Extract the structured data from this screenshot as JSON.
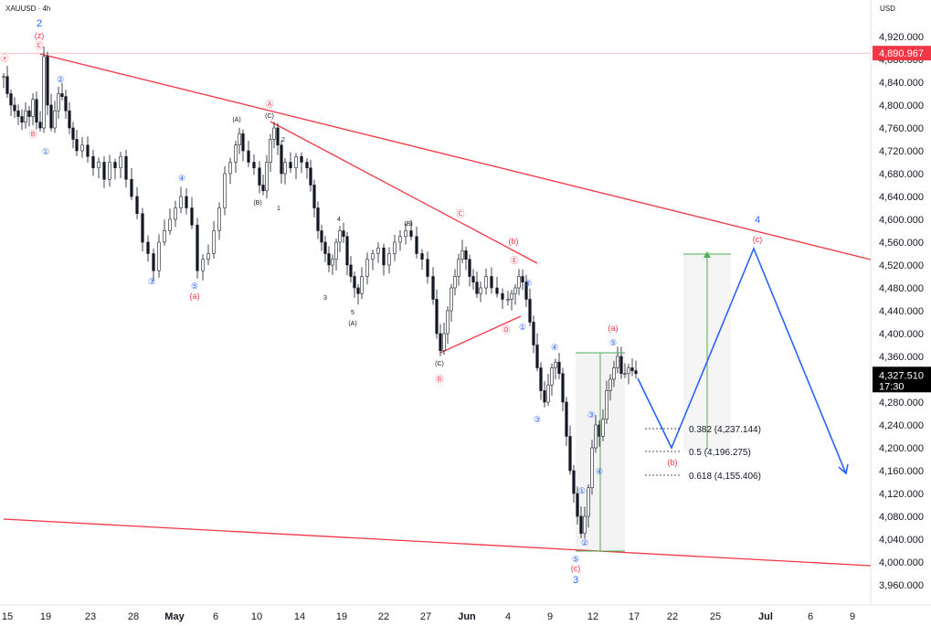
{
  "symbol": "XAUUSD",
  "timeframe": "4h",
  "currency": "USD",
  "colors": {
    "up": "#131722",
    "down": "#131722",
    "trendline": "#f23645",
    "projection": "#2962ff",
    "wave_blue": "#2962ff",
    "wave_red": "#f23645",
    "target_line": "#4caf50",
    "price_badge_high": "#f23645",
    "price_badge_last": "#000000"
  },
  "price_axis": {
    "ticks": [
      "4,920.000",
      "4,880.000",
      "4,840.000",
      "4,800.000",
      "4,760.000",
      "4,720.000",
      "4,680.000",
      "4,640.000",
      "4,600.000",
      "4,560.000",
      "4,520.000",
      "4,480.000",
      "4,440.000",
      "4,400.000",
      "4,360.000",
      "4,320.000",
      "4,280.000",
      "4,240.000",
      "4,200.000",
      "4,160.000",
      "4,120.000",
      "4,080.000",
      "4,040.000",
      "4,000.000",
      "3,960.000"
    ],
    "high_badge": "4,890.967",
    "last_badge": "4,327.510",
    "last_countdown": "17:30"
  },
  "time_axis": {
    "labels": [
      {
        "t": "15",
        "month": false
      },
      {
        "t": "19",
        "month": false
      },
      {
        "t": "23",
        "month": false
      },
      {
        "t": "28",
        "month": false
      },
      {
        "t": "May",
        "month": true
      },
      {
        "t": "6",
        "month": false
      },
      {
        "t": "10",
        "month": false
      },
      {
        "t": "14",
        "month": false
      },
      {
        "t": "19",
        "month": false
      },
      {
        "t": "22",
        "month": false
      },
      {
        "t": "27",
        "month": false
      },
      {
        "t": "Jun",
        "month": true
      },
      {
        "t": "4",
        "month": false
      },
      {
        "t": "9",
        "month": false
      },
      {
        "t": "12",
        "month": false
      },
      {
        "t": "17",
        "month": false
      },
      {
        "t": "22",
        "month": false
      },
      {
        "t": "25",
        "month": false
      },
      {
        "t": "Jul",
        "month": true
      },
      {
        "t": "6",
        "month": false
      },
      {
        "t": "9",
        "month": false
      }
    ]
  },
  "fib_levels": [
    {
      "label": "0.382 (4,237.144)",
      "value": 4237.144
    },
    {
      "label": "0.5 (4,196.275)",
      "value": 4196.275
    },
    {
      "label": "0.618 (4,155.406)",
      "value": 4155.406
    }
  ],
  "wave_labels": {
    "w2": "2",
    "wz": "(z)",
    "wc_top": "Ⓒ",
    "wa_left": "ⓐ",
    "wb_left": "Ⓑ",
    "w1c": "①",
    "w2c": "②",
    "w3c": "③",
    "w4c": "④",
    "w5c": "⑤",
    "wa_paren": "(a)",
    "wA_circ": "Ⓐ",
    "wC_paren": "(C)",
    "wA_paren": "(A)",
    "wB_paren": "(B)",
    "n1": "1",
    "n2": "2",
    "n3": "3",
    "n4": "4",
    "n5": "5",
    "wC_circ": "Ⓒ",
    "wb_paren": "(b)",
    "wE_circ": "Ⓔ",
    "wD_circ": "Ⓓ",
    "wB_circ": "Ⓑ",
    "wc_paren": "(c)",
    "w3": "3",
    "w4": "4"
  },
  "chart_data": {
    "type": "candlestick",
    "symbol": "XAUUSD",
    "interval": "4h",
    "ylim": [
      3940,
      4950
    ],
    "xlabels": [
      "15",
      "19",
      "23",
      "28",
      "May",
      "6",
      "10",
      "14",
      "19",
      "22",
      "27",
      "Jun",
      "4",
      "9",
      "12",
      "17",
      "22",
      "25",
      "Jul",
      "6",
      "9"
    ],
    "close_path": [
      [
        0,
        4850
      ],
      [
        4,
        4820
      ],
      [
        8,
        4800
      ],
      [
        12,
        4790
      ],
      [
        16,
        4780
      ],
      [
        20,
        4770
      ],
      [
        24,
        4790
      ],
      [
        28,
        4780
      ],
      [
        32,
        4810
      ],
      [
        36,
        4770
      ],
      [
        40,
        4760
      ],
      [
        44,
        4885
      ],
      [
        48,
        4800
      ],
      [
        52,
        4760
      ],
      [
        56,
        4790
      ],
      [
        60,
        4820
      ],
      [
        64,
        4815
      ],
      [
        68,
        4790
      ],
      [
        72,
        4760
      ],
      [
        76,
        4740
      ],
      [
        80,
        4720
      ],
      [
        86,
        4730
      ],
      [
        92,
        4710
      ],
      [
        98,
        4690
      ],
      [
        104,
        4700
      ],
      [
        110,
        4670
      ],
      [
        116,
        4700
      ],
      [
        122,
        4690
      ],
      [
        128,
        4710
      ],
      [
        134,
        4670
      ],
      [
        140,
        4640
      ],
      [
        146,
        4610
      ],
      [
        152,
        4560
      ],
      [
        158,
        4540
      ],
      [
        164,
        4510
      ],
      [
        170,
        4560
      ],
      [
        176,
        4580
      ],
      [
        182,
        4600
      ],
      [
        188,
        4620
      ],
      [
        194,
        4640
      ],
      [
        200,
        4620
      ],
      [
        206,
        4590
      ],
      [
        212,
        4510
      ],
      [
        218,
        4530
      ],
      [
        224,
        4540
      ],
      [
        230,
        4580
      ],
      [
        236,
        4620
      ],
      [
        242,
        4680
      ],
      [
        248,
        4700
      ],
      [
        254,
        4730
      ],
      [
        258,
        4750
      ],
      [
        262,
        4720
      ],
      [
        268,
        4700
      ],
      [
        274,
        4690
      ],
      [
        280,
        4660
      ],
      [
        284,
        4650
      ],
      [
        288,
        4700
      ],
      [
        292,
        4740
      ],
      [
        296,
        4760
      ],
      [
        300,
        4730
      ],
      [
        304,
        4680
      ],
      [
        308,
        4700
      ],
      [
        314,
        4690
      ],
      [
        320,
        4710
      ],
      [
        326,
        4700
      ],
      [
        332,
        4690
      ],
      [
        336,
        4660
      ],
      [
        340,
        4620
      ],
      [
        344,
        4580
      ],
      [
        348,
        4560
      ],
      [
        352,
        4540
      ],
      [
        356,
        4520
      ],
      [
        360,
        4530
      ],
      [
        364,
        4560
      ],
      [
        368,
        4580
      ],
      [
        372,
        4570
      ],
      [
        376,
        4520
      ],
      [
        380,
        4500
      ],
      [
        384,
        4480
      ],
      [
        388,
        4470
      ],
      [
        392,
        4500
      ],
      [
        398,
        4530
      ],
      [
        404,
        4540
      ],
      [
        410,
        4550
      ],
      [
        416,
        4520
      ],
      [
        422,
        4540
      ],
      [
        428,
        4560
      ],
      [
        434,
        4570
      ],
      [
        440,
        4580
      ],
      [
        446,
        4570
      ],
      [
        452,
        4540
      ],
      [
        458,
        4530
      ],
      [
        464,
        4500
      ],
      [
        470,
        4460
      ],
      [
        474,
        4400
      ],
      [
        478,
        4370
      ],
      [
        482,
        4400
      ],
      [
        486,
        4440
      ],
      [
        490,
        4480
      ],
      [
        494,
        4500
      ],
      [
        498,
        4530
      ],
      [
        502,
        4545
      ],
      [
        506,
        4530
      ],
      [
        510,
        4500
      ],
      [
        514,
        4490
      ],
      [
        518,
        4470
      ],
      [
        522,
        4480
      ],
      [
        528,
        4500
      ],
      [
        534,
        4480
      ],
      [
        540,
        4470
      ],
      [
        546,
        4460
      ],
      [
        552,
        4460
      ],
      [
        556,
        4470
      ],
      [
        560,
        4480
      ],
      [
        564,
        4500
      ],
      [
        568,
        4490
      ],
      [
        572,
        4460
      ],
      [
        576,
        4420
      ],
      [
        580,
        4380
      ],
      [
        584,
        4340
      ],
      [
        588,
        4300
      ],
      [
        592,
        4280
      ],
      [
        596,
        4310
      ],
      [
        600,
        4340
      ],
      [
        604,
        4350
      ],
      [
        608,
        4330
      ],
      [
        612,
        4280
      ],
      [
        616,
        4220
      ],
      [
        620,
        4160
      ],
      [
        624,
        4120
      ],
      [
        628,
        4080
      ],
      [
        632,
        4050
      ],
      [
        636,
        4080
      ],
      [
        640,
        4130
      ],
      [
        644,
        4200
      ],
      [
        648,
        4240
      ],
      [
        652,
        4220
      ],
      [
        656,
        4250
      ],
      [
        660,
        4300
      ],
      [
        664,
        4320
      ],
      [
        668,
        4340
      ],
      [
        672,
        4360
      ],
      [
        676,
        4330
      ],
      [
        680,
        4330
      ],
      [
        684,
        4340
      ],
      [
        688,
        4335
      ],
      [
        692,
        4330
      ]
    ],
    "annotations": [
      "0.382 (4,237.144)",
      "0.5 (4,196.275)",
      "0.618 (4,155.406)"
    ],
    "last_price": 4327.51,
    "marked_high": 4890.967
  }
}
